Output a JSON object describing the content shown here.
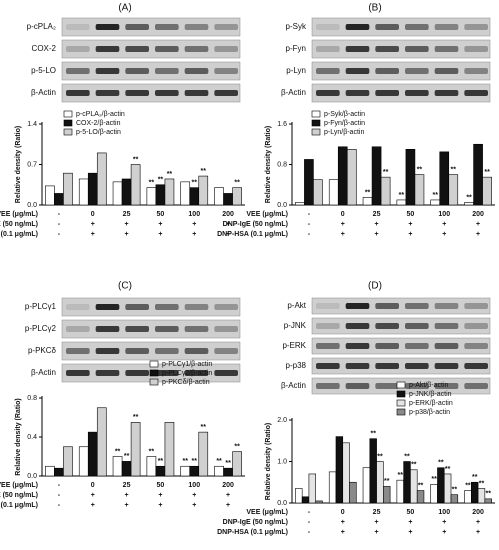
{
  "chart_data": [
    {
      "type": "bar",
      "panel": "(A)",
      "blots": [
        "p-cPLA₂",
        "COX-2",
        "p-5-LO",
        "β-Actin"
      ],
      "ylabel": "Relative density (Ratio)",
      "ylim": [
        0,
        1.4
      ],
      "yticks": [
        {
          "value": 0,
          "label": "0.0"
        },
        {
          "value": 0.7,
          "label": "0.7"
        },
        {
          "value": 1.4,
          "label": "1.4"
        }
      ],
      "xlabel": "VEE (μg/mL)",
      "categories": [
        "-",
        "0",
        "25",
        "50",
        "100",
        "200"
      ],
      "treatments": [
        {
          "label": "DNP-IgE (50 ng/mL)",
          "signs": [
            "-",
            "+",
            "+",
            "+",
            "+",
            "+"
          ]
        },
        {
          "label": "DNP-HSA (0.1 μg/mL)",
          "signs": [
            "-",
            "+",
            "+",
            "+",
            "+",
            "+"
          ]
        }
      ],
      "series": [
        {
          "name": "p-cPLA₂/β-actin",
          "color": "#ffffff",
          "values": [
            0.33,
            0.45,
            0.4,
            0.3,
            0.4,
            0.3
          ],
          "stars": [
            null,
            null,
            null,
            "**",
            null,
            null
          ]
        },
        {
          "name": "COX-2/β-actin",
          "color": "#111111",
          "values": [
            0.2,
            0.55,
            0.45,
            0.35,
            0.3,
            0.2
          ],
          "stars": [
            null,
            null,
            null,
            "**",
            "**",
            null
          ]
        },
        {
          "name": "p-5-LO/β-actin",
          "color": "#d0d0d0",
          "values": [
            0.55,
            0.9,
            0.7,
            0.45,
            0.5,
            0.3
          ],
          "stars": [
            null,
            null,
            "**",
            "**",
            "**",
            "**"
          ]
        }
      ]
    },
    {
      "type": "bar",
      "panel": "(B)",
      "blots": [
        "p-Syk",
        "p-Fyn",
        "p-Lyn",
        "β-Actin"
      ],
      "ylabel": "Relative density (Ratio)",
      "ylim": [
        0,
        1.6
      ],
      "yticks": [
        {
          "value": 0,
          "label": "0.0"
        },
        {
          "value": 0.8,
          "label": "0.8"
        },
        {
          "value": 1.6,
          "label": "1.6"
        }
      ],
      "xlabel": "VEE (μg/mL)",
      "categories": [
        "-",
        "0",
        "25",
        "50",
        "100",
        "200"
      ],
      "treatments": [
        {
          "label": "DNP-IgE (50 ng/mL)",
          "signs": [
            "-",
            "+",
            "+",
            "+",
            "+",
            "+"
          ]
        },
        {
          "label": "DNP-HSA (0.1 μg/mL)",
          "signs": [
            "-",
            "+",
            "+",
            "+",
            "+",
            "+"
          ]
        }
      ],
      "series": [
        {
          "name": "p-Syk/β-actin",
          "color": "#ffffff",
          "values": [
            0.05,
            0.5,
            0.15,
            0.1,
            0.1,
            0.05
          ],
          "stars": [
            null,
            null,
            "**",
            "**",
            "**",
            "**"
          ]
        },
        {
          "name": "p-Fyn/β-actin",
          "color": "#111111",
          "values": [
            0.9,
            1.15,
            1.15,
            1.1,
            1.05,
            1.2
          ],
          "stars": [
            null,
            null,
            null,
            null,
            null,
            null
          ]
        },
        {
          "name": "p-Lyn/β-actin",
          "color": "#d0d0d0",
          "values": [
            0.5,
            1.1,
            0.55,
            0.6,
            0.6,
            0.55
          ],
          "stars": [
            null,
            null,
            "**",
            "**",
            "**",
            "**"
          ]
        }
      ]
    },
    {
      "type": "bar",
      "panel": "(C)",
      "blots": [
        "p-PLCγ1",
        "p-PLCγ2",
        "p-PKCδ",
        "β-Actin"
      ],
      "ylabel": "Relative density (Ratio)",
      "ylim": [
        0,
        0.8
      ],
      "yticks": [
        {
          "value": 0,
          "label": "0.0"
        },
        0.4,
        0.8
      ],
      "xlabel": "VEE (μg/mL)",
      "categories": [
        "-",
        "0",
        "25",
        "50",
        "100",
        "200"
      ],
      "treatments": [
        {
          "label": "DNP-IgE (50 ng/mL)",
          "signs": [
            "-",
            "+",
            "+",
            "+",
            "+",
            "+"
          ]
        },
        {
          "label": "DNP-HSA (0.1 μg/mL)",
          "signs": [
            "-",
            "+",
            "+",
            "+",
            "+",
            "+"
          ]
        }
      ],
      "series": [
        {
          "name": "p-PLCγ1/β-actin",
          "color": "#ffffff",
          "values": [
            0.1,
            0.3,
            0.2,
            0.2,
            0.1,
            0.1
          ],
          "stars": [
            null,
            null,
            "**",
            "**",
            "**",
            "**"
          ]
        },
        {
          "name": "p-PLCγ2/β-actin",
          "color": "#111111",
          "values": [
            0.08,
            0.45,
            0.15,
            0.1,
            0.1,
            0.08
          ],
          "stars": [
            null,
            null,
            "**",
            "**",
            "**",
            "**"
          ]
        },
        {
          "name": "p-PKCδ/β-actin",
          "color": "#d0d0d0",
          "values": [
            0.3,
            0.7,
            0.55,
            0.55,
            0.45,
            0.25
          ],
          "stars": [
            null,
            null,
            "**",
            null,
            "**",
            "**"
          ]
        }
      ]
    },
    {
      "type": "bar",
      "panel": "(D)",
      "blots": [
        "p-Akt",
        "p-JNK",
        "p-ERK",
        "p-p38",
        "β-Actin"
      ],
      "ylabel": "Relative density (Ratio)",
      "ylim": [
        0,
        2
      ],
      "yticks": [
        {
          "value": 0,
          "label": "0.0"
        },
        {
          "value": 1,
          "label": "1.0"
        },
        {
          "value": 2,
          "label": "2.0"
        }
      ],
      "xlabel": "VEE (μg/mL)",
      "categories": [
        "-",
        "0",
        "25",
        "50",
        "100",
        "200"
      ],
      "treatments": [
        {
          "label": "DNP-IgE (50 ng/mL)",
          "signs": [
            "-",
            "+",
            "+",
            "+",
            "+",
            "+"
          ]
        },
        {
          "label": "DNP-HSA (0.1 μg/mL)",
          "signs": [
            "-",
            "+",
            "+",
            "+",
            "+",
            "+"
          ]
        }
      ],
      "series": [
        {
          "name": "p-Akt/β-actin",
          "color": "#ffffff",
          "values": [
            0.35,
            0.75,
            0.85,
            0.55,
            0.45,
            0.3
          ],
          "stars": [
            null,
            null,
            null,
            "**",
            "**",
            "**"
          ]
        },
        {
          "name": "p-JNK/β-actin",
          "color": "#111111",
          "values": [
            0.15,
            1.6,
            1.55,
            1.0,
            0.85,
            0.5
          ],
          "stars": [
            null,
            null,
            "**",
            "**",
            "**",
            "**"
          ]
        },
        {
          "name": "p-ERK/β-actin",
          "color": "#e4e4e4",
          "values": [
            0.7,
            1.45,
            1.0,
            0.8,
            0.7,
            0.35
          ],
          "stars": [
            null,
            null,
            "**",
            "**",
            "**",
            "**"
          ]
        },
        {
          "name": "p-p38/β-actin",
          "color": "#8a8a8a",
          "values": [
            0.05,
            0.5,
            0.4,
            0.3,
            0.2,
            0.1
          ],
          "stars": [
            null,
            null,
            "**",
            "**",
            "**",
            "**"
          ]
        }
      ]
    }
  ]
}
